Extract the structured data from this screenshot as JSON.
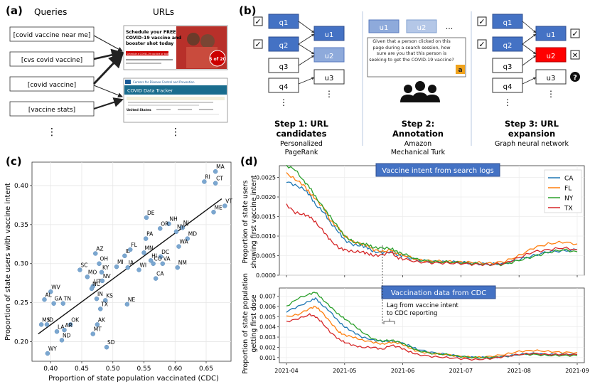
{
  "panels": {
    "a": {
      "label": "(a)",
      "queries_header": "Queries",
      "urls_header": "URLs",
      "queries": [
        "[covid vaccine near me]",
        "[cvs covid vaccine]",
        "[covid vaccine]",
        "[vaccine stats]"
      ],
      "more": "⋮",
      "cvs_thumb": {
        "title_line1": "Schedule your FREE",
        "title_line2": "COVID-19 vaccine and",
        "title_line3": "booster shot today",
        "button": "Schedule a COVID-19 vaccine or booster",
        "badge": "5 of 20"
      },
      "cdc_thumb": {
        "org": "Centers for Disease Control and Prevention",
        "title": "COVID Data Tracker",
        "region": "United States"
      }
    },
    "b": {
      "label": "(b)",
      "q_nodes": [
        "q1",
        "q2",
        "q3",
        "q4"
      ],
      "u_nodes": [
        "u1",
        "u2",
        "u3"
      ],
      "annotation_prompt": "Given that a person clicked on this page during a search session, how sure are you that this person is seeking to get the COVID-19 vaccine?",
      "amazon_letter": "a",
      "more": "⋮",
      "ellipsis": "...",
      "steps": [
        {
          "title1": "Step 1: URL",
          "title2": "candidates",
          "sub1": "Personalized",
          "sub2": "PageRank"
        },
        {
          "title1": "Step 2:",
          "title2": "Annotation",
          "sub1": "Amazon",
          "sub2": "Mechanical Turk"
        },
        {
          "title1": "Step 3: URL",
          "title2": "expansion",
          "sub1": "Graph neural network",
          "sub2": ""
        }
      ],
      "unknown_mark": "?",
      "check_mark": "✓",
      "cross_mark": "✕"
    },
    "c": {
      "label": "(c)",
      "xlabel": "Proportion of state population vaccinated (CDC)",
      "ylabel": "Proportion of state users with vaccine intent"
    },
    "d": {
      "label": "(d)",
      "top_title": "Vaccine intent from search logs",
      "bottom_title": "Vaccination data from CDC",
      "top_ylabel1": "Proportion of state users",
      "top_ylabel2": "showing first vaccine intent",
      "bottom_ylabel1": "Proportion of state population",
      "bottom_ylabel2": "getting first dose",
      "lag_line1": "Lag from vaccine intent",
      "lag_line2": "to CDC reporting"
    }
  },
  "chart_data": [
    {
      "type": "scatter",
      "title": "",
      "xlabel": "Proportion of state population vaccinated (CDC)",
      "ylabel": "Proportion of state users with vaccine intent",
      "xlim": [
        0.37,
        0.69
      ],
      "ylim": [
        0.175,
        0.43
      ],
      "xticks": [
        0.4,
        0.45,
        0.5,
        0.55,
        0.6,
        0.65
      ],
      "yticks": [
        0.2,
        0.25,
        0.3,
        0.35,
        0.4
      ],
      "xtick_labels": [
        "0.40",
        "0.45",
        "0.50",
        "0.55",
        "0.60",
        "0.65"
      ],
      "ytick_labels": [
        "0.20",
        "0.25",
        "0.30",
        "0.35",
        "0.40"
      ],
      "grid": true,
      "fit_line": {
        "x": [
          0.38,
          0.675
        ],
        "y": [
          0.21,
          0.383
        ]
      },
      "points": [
        {
          "label": "MA",
          "x": 0.665,
          "y": 0.418
        },
        {
          "label": "RI",
          "x": 0.647,
          "y": 0.405
        },
        {
          "label": "CT",
          "x": 0.665,
          "y": 0.403
        },
        {
          "label": "VT",
          "x": 0.68,
          "y": 0.374
        },
        {
          "label": "ME",
          "x": 0.662,
          "y": 0.366
        },
        {
          "label": "NH",
          "x": 0.59,
          "y": 0.351
        },
        {
          "label": "NJ",
          "x": 0.612,
          "y": 0.346
        },
        {
          "label": "OR",
          "x": 0.576,
          "y": 0.345
        },
        {
          "label": "NY",
          "x": 0.602,
          "y": 0.341
        },
        {
          "label": "DE",
          "x": 0.554,
          "y": 0.359
        },
        {
          "label": "MD",
          "x": 0.62,
          "y": 0.332
        },
        {
          "label": "PA",
          "x": 0.553,
          "y": 0.332
        },
        {
          "label": "WA",
          "x": 0.606,
          "y": 0.322
        },
        {
          "label": "FL",
          "x": 0.528,
          "y": 0.318
        },
        {
          "label": "MN",
          "x": 0.55,
          "y": 0.314
        },
        {
          "label": "IL",
          "x": 0.519,
          "y": 0.31
        },
        {
          "label": "AZ",
          "x": 0.472,
          "y": 0.313
        },
        {
          "label": "DC",
          "x": 0.577,
          "y": 0.309
        },
        {
          "label": "HI",
          "x": 0.561,
          "y": 0.304
        },
        {
          "label": "CO",
          "x": 0.565,
          "y": 0.3
        },
        {
          "label": "VA",
          "x": 0.58,
          "y": 0.3
        },
        {
          "label": "OH",
          "x": 0.478,
          "y": 0.3
        },
        {
          "label": "MI",
          "x": 0.506,
          "y": 0.296
        },
        {
          "label": "IA",
          "x": 0.524,
          "y": 0.295
        },
        {
          "label": "WI",
          "x": 0.542,
          "y": 0.292
        },
        {
          "label": "NM",
          "x": 0.604,
          "y": 0.295
        },
        {
          "label": "KY",
          "x": 0.482,
          "y": 0.289
        },
        {
          "label": "SC",
          "x": 0.447,
          "y": 0.292
        },
        {
          "label": "MO",
          "x": 0.459,
          "y": 0.283
        },
        {
          "label": "NV",
          "x": 0.483,
          "y": 0.278
        },
        {
          "label": "CA",
          "x": 0.569,
          "y": 0.281
        },
        {
          "label": "UT",
          "x": 0.468,
          "y": 0.271
        },
        {
          "label": "NC",
          "x": 0.466,
          "y": 0.268
        },
        {
          "label": "IN",
          "x": 0.474,
          "y": 0.255
        },
        {
          "label": "KS",
          "x": 0.488,
          "y": 0.253
        },
        {
          "label": "WV",
          "x": 0.4,
          "y": 0.264
        },
        {
          "label": "AL",
          "x": 0.39,
          "y": 0.254
        },
        {
          "label": "GA",
          "x": 0.405,
          "y": 0.249
        },
        {
          "label": "TN",
          "x": 0.42,
          "y": 0.249
        },
        {
          "label": "TX",
          "x": 0.48,
          "y": 0.242
        },
        {
          "label": "NE",
          "x": 0.523,
          "y": 0.248
        },
        {
          "label": "OK",
          "x": 0.432,
          "y": 0.222
        },
        {
          "label": "AK",
          "x": 0.475,
          "y": 0.222
        },
        {
          "label": "MS",
          "x": 0.385,
          "y": 0.222
        },
        {
          "label": "ID",
          "x": 0.394,
          "y": 0.222
        },
        {
          "label": "LA",
          "x": 0.41,
          "y": 0.213
        },
        {
          "label": "AR",
          "x": 0.422,
          "y": 0.215
        },
        {
          "label": "MT",
          "x": 0.468,
          "y": 0.21
        },
        {
          "label": "ND",
          "x": 0.418,
          "y": 0.202
        },
        {
          "label": "SD",
          "x": 0.49,
          "y": 0.193
        },
        {
          "label": "WY",
          "x": 0.395,
          "y": 0.185
        }
      ]
    },
    {
      "type": "line",
      "title": "Vaccine intent from search logs",
      "xlabel": "",
      "ylabel": "Proportion of state users showing first vaccine intent",
      "x_range": [
        "2021-04-01",
        "2021-09-01"
      ],
      "ylim": [
        0,
        0.0028
      ],
      "yticks": [
        0.0,
        0.0005,
        0.001,
        0.0015,
        0.002,
        0.0025
      ],
      "ytick_labels": [
        "0.0000",
        "0.0005",
        "0.0010",
        "0.0015",
        "0.0020",
        "0.0025"
      ],
      "legend": "top-right",
      "series": [
        {
          "name": "CA",
          "color": "#1f77b4",
          "x_frac": [
            0,
            0.03,
            0.06,
            0.08,
            0.1,
            0.13,
            0.15,
            0.18,
            0.2,
            0.23,
            0.26,
            0.28,
            0.3,
            0.33,
            0.36,
            0.38,
            0.4,
            0.45,
            0.5,
            0.55,
            0.6,
            0.65,
            0.7,
            0.75,
            0.8,
            0.85,
            0.9,
            0.95,
            1.0
          ],
          "values": [
            0.0024,
            0.0023,
            0.0022,
            0.00205,
            0.0018,
            0.0016,
            0.00135,
            0.0011,
            0.0009,
            0.00078,
            0.00075,
            0.0007,
            0.0006,
            0.00058,
            0.0006,
            0.00052,
            0.0005,
            0.00038,
            0.00035,
            0.00034,
            0.00033,
            0.0003,
            0.00028,
            0.0003,
            0.0004,
            0.0005,
            0.0006,
            0.00062,
            0.00065
          ]
        },
        {
          "name": "FL",
          "color": "#ff7f0e",
          "x_frac": [
            0,
            0.03,
            0.06,
            0.08,
            0.1,
            0.13,
            0.15,
            0.18,
            0.2,
            0.23,
            0.26,
            0.28,
            0.3,
            0.33,
            0.36,
            0.38,
            0.4,
            0.45,
            0.5,
            0.55,
            0.6,
            0.65,
            0.7,
            0.75,
            0.8,
            0.85,
            0.9,
            0.95,
            1.0
          ],
          "values": [
            0.0026,
            0.00245,
            0.0023,
            0.0021,
            0.00195,
            0.0017,
            0.0014,
            0.0012,
            0.001,
            0.00085,
            0.0008,
            0.00075,
            0.00065,
            0.0006,
            0.00065,
            0.00055,
            0.00052,
            0.0004,
            0.00036,
            0.00035,
            0.00034,
            0.00032,
            0.0003,
            0.00035,
            0.0005,
            0.0007,
            0.0008,
            0.00085,
            0.0008
          ]
        },
        {
          "name": "NY",
          "color": "#2ca02c",
          "x_frac": [
            0,
            0.03,
            0.06,
            0.08,
            0.1,
            0.13,
            0.15,
            0.18,
            0.2,
            0.23,
            0.26,
            0.28,
            0.3,
            0.33,
            0.36,
            0.38,
            0.4,
            0.45,
            0.5,
            0.55,
            0.6,
            0.65,
            0.7,
            0.75,
            0.8,
            0.85,
            0.9,
            0.95,
            1.0
          ],
          "values": [
            0.0028,
            0.0027,
            0.0024,
            0.00225,
            0.002,
            0.0017,
            0.0015,
            0.0012,
            0.001,
            0.00085,
            0.0008,
            0.00078,
            0.0007,
            0.0007,
            0.00068,
            0.0006,
            0.00055,
            0.0004,
            0.00035,
            0.00034,
            0.00032,
            0.0003,
            0.00027,
            0.00028,
            0.00038,
            0.00048,
            0.00058,
            0.00065,
            0.0006
          ]
        },
        {
          "name": "TX",
          "color": "#d62728",
          "x_frac": [
            0,
            0.03,
            0.06,
            0.08,
            0.1,
            0.13,
            0.15,
            0.18,
            0.2,
            0.23,
            0.26,
            0.28,
            0.3,
            0.33,
            0.36,
            0.38,
            0.4,
            0.45,
            0.5,
            0.55,
            0.6,
            0.65,
            0.7,
            0.75,
            0.8,
            0.85,
            0.9,
            0.95,
            1.0
          ],
          "values": [
            0.0018,
            0.0016,
            0.00155,
            0.0015,
            0.00135,
            0.0011,
            0.0009,
            0.0007,
            0.00065,
            0.0006,
            0.0006,
            0.00055,
            0.0005,
            0.00052,
            0.0006,
            0.00045,
            0.00042,
            0.00034,
            0.00032,
            0.00031,
            0.0003,
            0.00028,
            0.00027,
            0.0003,
            0.00045,
            0.0006,
            0.00065,
            0.0007,
            0.00065
          ]
        }
      ]
    },
    {
      "type": "line",
      "title": "Vaccination data from CDC",
      "xlabel": "",
      "ylabel": "Proportion of state population getting first dose",
      "x_range": [
        "2021-04-01",
        "2021-09-01"
      ],
      "xtick_labels": [
        "2021-04",
        "2021-05",
        "2021-06",
        "2021-07",
        "2021-08",
        "2021-09"
      ],
      "ylim": [
        0.0005,
        0.0078
      ],
      "yticks": [
        0.001,
        0.002,
        0.003,
        0.004,
        0.005,
        0.006,
        0.007
      ],
      "ytick_labels": [
        "0.001",
        "0.002",
        "0.003",
        "0.004",
        "0.005",
        "0.006",
        "0.007"
      ],
      "series": [
        {
          "name": "CA",
          "color": "#1f77b4",
          "x_frac": [
            0,
            0.04,
            0.08,
            0.1,
            0.12,
            0.15,
            0.18,
            0.2,
            0.23,
            0.26,
            0.3,
            0.33,
            0.36,
            0.39,
            0.42,
            0.45,
            0.5,
            0.55,
            0.6,
            0.65,
            0.7,
            0.75,
            0.8,
            0.85,
            0.9,
            0.95,
            1.0
          ],
          "values": [
            0.0055,
            0.006,
            0.0065,
            0.0068,
            0.0062,
            0.0055,
            0.0045,
            0.004,
            0.0035,
            0.003,
            0.0027,
            0.0026,
            0.0026,
            0.0025,
            0.0022,
            0.0018,
            0.0015,
            0.0013,
            0.0011,
            0.001,
            0.001,
            0.0011,
            0.0013,
            0.0014,
            0.0013,
            0.0013,
            0.0013
          ]
        },
        {
          "name": "FL",
          "color": "#ff7f0e",
          "x_frac": [
            0,
            0.04,
            0.08,
            0.1,
            0.12,
            0.15,
            0.18,
            0.2,
            0.23,
            0.26,
            0.3,
            0.33,
            0.36,
            0.39,
            0.42,
            0.45,
            0.5,
            0.55,
            0.6,
            0.65,
            0.7,
            0.75,
            0.8,
            0.85,
            0.9,
            0.95,
            1.0
          ],
          "values": [
            0.005,
            0.0052,
            0.0058,
            0.006,
            0.0055,
            0.0045,
            0.0035,
            0.0032,
            0.003,
            0.0027,
            0.0025,
            0.0023,
            0.0025,
            0.0024,
            0.002,
            0.0016,
            0.0014,
            0.0013,
            0.0011,
            0.001,
            0.0011,
            0.0013,
            0.0016,
            0.0017,
            0.0016,
            0.0015,
            0.0015
          ]
        },
        {
          "name": "NY",
          "color": "#2ca02c",
          "x_frac": [
            0,
            0.04,
            0.08,
            0.1,
            0.12,
            0.15,
            0.18,
            0.2,
            0.23,
            0.26,
            0.3,
            0.33,
            0.36,
            0.39,
            0.42,
            0.45,
            0.5,
            0.55,
            0.6,
            0.65,
            0.7,
            0.75,
            0.8,
            0.85,
            0.9,
            0.95,
            1.0
          ],
          "values": [
            0.006,
            0.0068,
            0.0072,
            0.0074,
            0.0068,
            0.006,
            0.0052,
            0.0048,
            0.0042,
            0.0035,
            0.0028,
            0.0026,
            0.0027,
            0.0025,
            0.0021,
            0.0017,
            0.0014,
            0.0013,
            0.0011,
            0.001,
            0.001,
            0.0011,
            0.0013,
            0.0013,
            0.0012,
            0.0012,
            0.0012
          ]
        },
        {
          "name": "TX",
          "color": "#d62728",
          "x_frac": [
            0,
            0.04,
            0.08,
            0.1,
            0.12,
            0.15,
            0.18,
            0.2,
            0.23,
            0.26,
            0.3,
            0.33,
            0.36,
            0.39,
            0.42,
            0.45,
            0.5,
            0.55,
            0.6,
            0.65,
            0.7,
            0.75,
            0.8,
            0.85,
            0.9,
            0.95,
            1.0
          ],
          "values": [
            0.0045,
            0.0048,
            0.0052,
            0.005,
            0.0045,
            0.0035,
            0.0028,
            0.0025,
            0.0022,
            0.002,
            0.002,
            0.0018,
            0.0022,
            0.002,
            0.0016,
            0.0013,
            0.0011,
            0.001,
            0.0009,
            0.0008,
            0.0009,
            0.0011,
            0.0013,
            0.0014,
            0.0013,
            0.0013,
            0.0013
          ]
        }
      ]
    }
  ]
}
